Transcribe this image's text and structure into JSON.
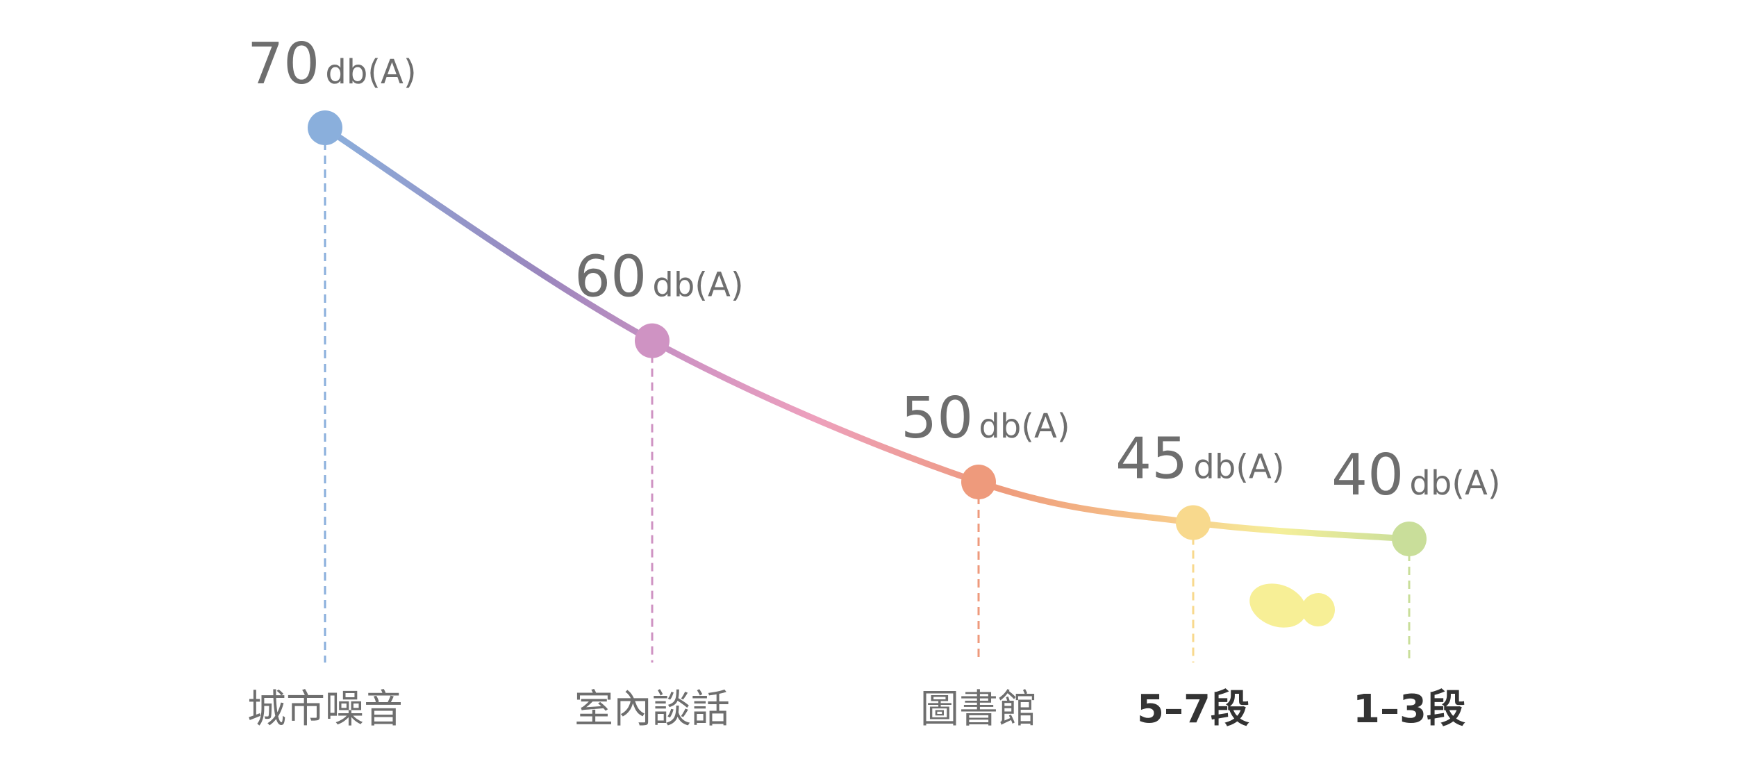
{
  "chart_data": {
    "type": "line",
    "categories": [
      "城市噪音",
      "室內談話",
      "圖書館",
      "5–7段",
      "1–3段"
    ],
    "values": [
      70,
      60,
      50,
      45,
      40
    ],
    "unit": "db(A)",
    "colors": [
      "#8aafdc",
      "#cf93c3",
      "#ee9a7c",
      "#f8d98d",
      "#c9de9a"
    ]
  }
}
